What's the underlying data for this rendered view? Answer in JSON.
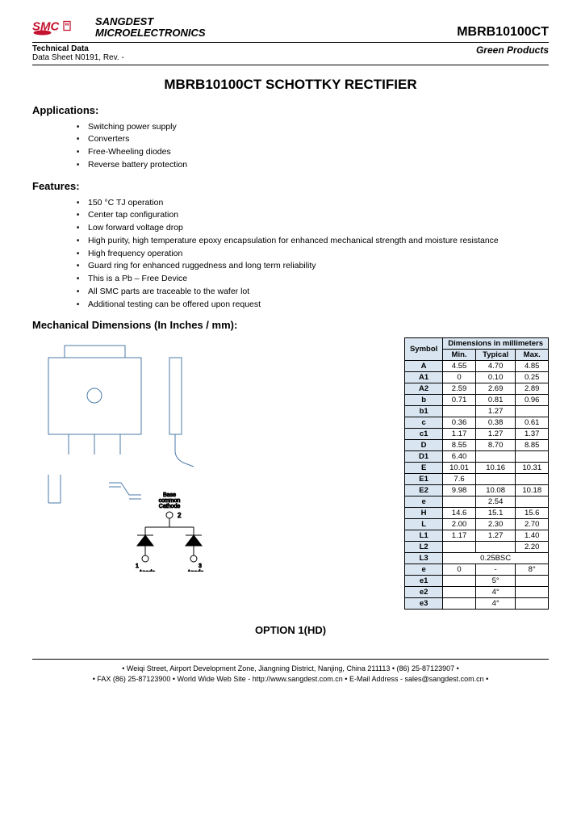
{
  "header": {
    "company_line1": "SANGDEST",
    "company_line2": "MICROELECTRONICS",
    "part_number": "MBRB10100CT",
    "tech_data_label": "Technical Data",
    "datasheet_rev": "Data Sheet N0191, Rev. -",
    "green_products": "Green Products"
  },
  "title": "MBRB10100CT SCHOTTKY RECTIFIER",
  "applications": {
    "heading": "Applications:",
    "items": [
      "Switching power supply",
      "Converters",
      "Free-Wheeling diodes",
      "Reverse battery protection"
    ]
  },
  "features": {
    "heading": "Features:",
    "items": [
      "150 °C TJ operation",
      "Center tap configuration",
      "Low forward voltage drop",
      "High purity, high temperature epoxy encapsulation for enhanced mechanical strength and moisture resistance",
      "High frequency operation",
      "Guard ring for enhanced ruggedness and long term reliability",
      "This is a Pb – Free Device",
      "All SMC parts are traceable to the wafer lot",
      "Additional testing can be offered upon request"
    ]
  },
  "mech": {
    "heading": "Mechanical Dimensions (In Inches / mm):",
    "table_header_symbol": "Symbol",
    "table_header_dim": "Dimensions in millimeters",
    "cols": [
      "Min.",
      "Typical",
      "Max."
    ],
    "rows": [
      {
        "sym": "A",
        "min": "4.55",
        "typ": "4.70",
        "max": "4.85"
      },
      {
        "sym": "A1",
        "min": "0",
        "typ": "0.10",
        "max": "0.25"
      },
      {
        "sym": "A2",
        "min": "2.59",
        "typ": "2.69",
        "max": "2.89"
      },
      {
        "sym": "b",
        "min": "0.71",
        "typ": "0.81",
        "max": "0.96"
      },
      {
        "sym": "b1",
        "min": "",
        "typ": "1.27",
        "max": ""
      },
      {
        "sym": "c",
        "min": "0.36",
        "typ": "0.38",
        "max": "0.61"
      },
      {
        "sym": "c1",
        "min": "1.17",
        "typ": "1.27",
        "max": "1.37"
      },
      {
        "sym": "D",
        "min": "8.55",
        "typ": "8.70",
        "max": "8.85"
      },
      {
        "sym": "D1",
        "min": "6.40",
        "typ": "",
        "max": ""
      },
      {
        "sym": "E",
        "min": "10.01",
        "typ": "10.16",
        "max": "10.31"
      },
      {
        "sym": "E1",
        "min": "7.6",
        "typ": "",
        "max": ""
      },
      {
        "sym": "E2",
        "min": "9.98",
        "typ": "10.08",
        "max": "10.18"
      },
      {
        "sym": "e",
        "min": "",
        "typ": "2.54",
        "max": ""
      },
      {
        "sym": "H",
        "min": "14.6",
        "typ": "15.1",
        "max": "15.6"
      },
      {
        "sym": "L",
        "min": "2.00",
        "typ": "2.30",
        "max": "2.70"
      },
      {
        "sym": "L1",
        "min": "1.17",
        "typ": "1.27",
        "max": "1.40"
      },
      {
        "sym": "L2",
        "min": "",
        "typ": "",
        "max": "2.20"
      },
      {
        "sym": "L3",
        "span": "0.25BSC"
      },
      {
        "sym": "e",
        "min": "0",
        "typ": "-",
        "max": "8°"
      },
      {
        "sym": "e1",
        "min": "",
        "typ": "5°",
        "max": ""
      },
      {
        "sym": "e2",
        "min": "",
        "typ": "4°",
        "max": ""
      },
      {
        "sym": "e3",
        "min": "",
        "typ": "4°",
        "max": ""
      }
    ],
    "schematic_labels": {
      "common_cathode": "Base\ncommon\nCathode",
      "pin2": "2",
      "anode1": "1\nAnode",
      "anode3": "3\nAnode"
    }
  },
  "option_label": "OPTION 1(HD)",
  "footer": {
    "line1": "• Weiqi Street, Airport Development Zone, Jiangning District, Nanjing, China 211113 • (86) 25-87123907 •",
    "line2": "• FAX (86) 25-87123900 • World Wide Web Site - http://www.sangdest.com.cn • E-Mail Address - sales@sangdest.com.cn •"
  },
  "colors": {
    "logo_red": "#c41230",
    "table_header_bg": "#d9e6f2",
    "drawing_stroke": "#4a7aa8"
  }
}
